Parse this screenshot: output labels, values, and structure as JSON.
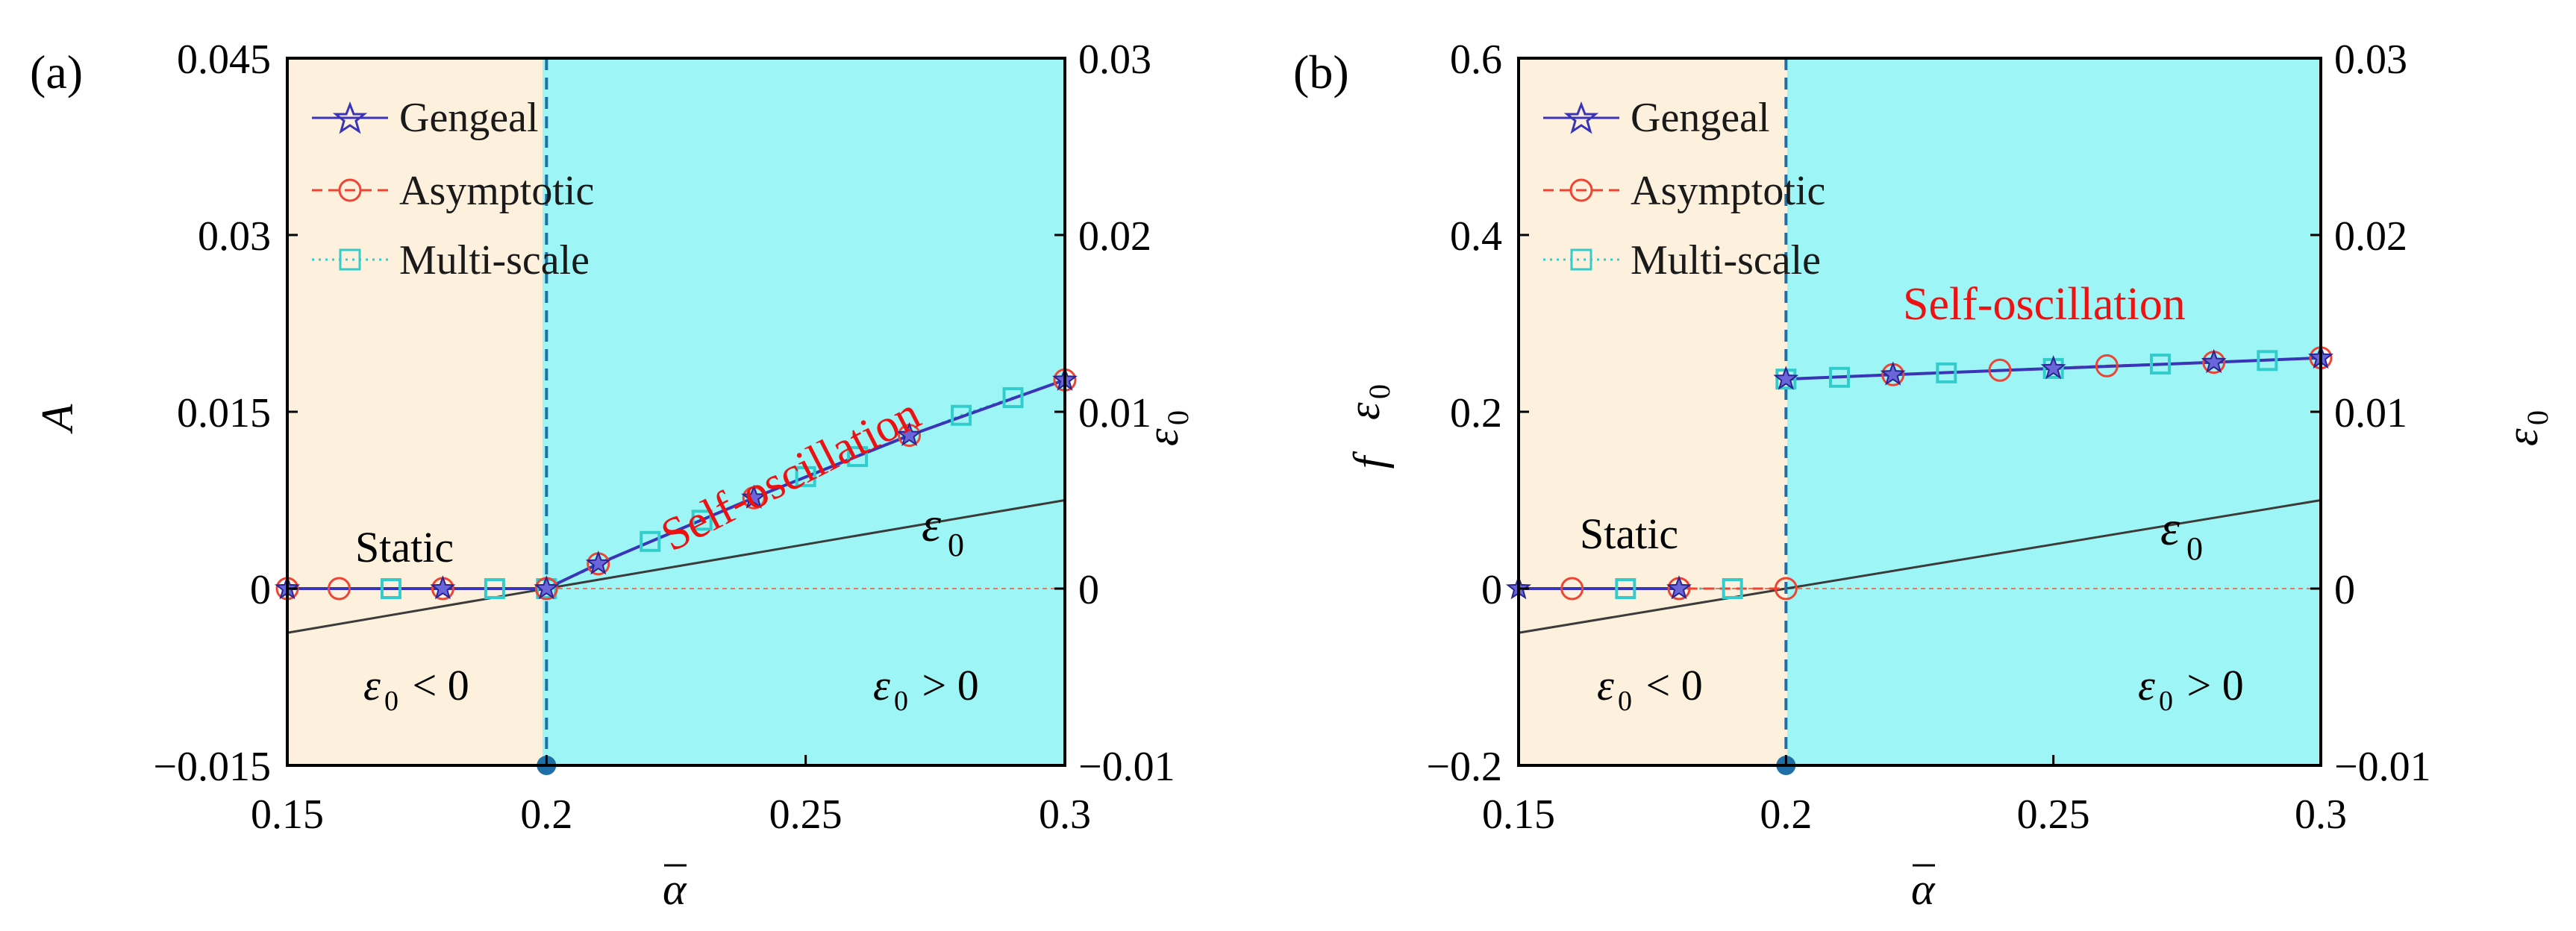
{
  "chart_data": [
    {
      "type": "line",
      "panel_label": "(a)",
      "xlabel": "α",
      "ylabel": "A",
      "ylabel_right": "ε",
      "ylabel_right_sub": "0",
      "xlim": [
        0.15,
        0.3
      ],
      "ylim": [
        -0.015,
        0.045
      ],
      "ylim_right": [
        -0.01,
        0.03
      ],
      "xticks": [
        "0.15",
        "0.2",
        "0.25",
        "0.3"
      ],
      "yticks": [
        "−0.015",
        "0",
        "0.015",
        "0.03",
        "0.045"
      ],
      "yticks_right": [
        "−0.01",
        "0",
        "0.01",
        "0.02",
        "0.03"
      ],
      "regions": [
        {
          "name": "static-region",
          "x": [
            0.15,
            0.2
          ],
          "color": "#fdf0dc"
        },
        {
          "name": "oscillation-region",
          "x": [
            0.2,
            0.3
          ],
          "color": "#9ef5f5"
        }
      ],
      "critical_value": 0.2,
      "series": [
        {
          "name": "Gengeal",
          "marker": "star",
          "color": "#3a34b8",
          "x": [
            0.15,
            0.18,
            0.2,
            0.21,
            0.24,
            0.27,
            0.3
          ],
          "y": [
            0,
            0,
            0,
            0.0021,
            0.0077,
            0.013,
            0.0177
          ]
        },
        {
          "name": "Asymptotic",
          "marker": "circle",
          "color": "#ee4433",
          "x": [
            0.15,
            0.16,
            0.18,
            0.2,
            0.21,
            0.24,
            0.27,
            0.3
          ],
          "y": [
            0,
            0,
            0,
            0,
            0.0021,
            0.0077,
            0.013,
            0.0177
          ]
        },
        {
          "name": "Multi-scale",
          "marker": "square",
          "color": "#33cccc",
          "x": [
            0.17,
            0.19,
            0.2,
            0.22,
            0.23,
            0.25,
            0.26,
            0.28,
            0.29
          ],
          "y": [
            0,
            0,
            0,
            0.004,
            0.0058,
            0.0095,
            0.0112,
            0.0147,
            0.0162
          ]
        }
      ],
      "epsilon_line": {
        "name": "ε0",
        "x": [
          0.15,
          0.3
        ],
        "y": [
          -0.0025,
          0.005
        ]
      },
      "annotations": {
        "self_oscillation": "Self-oscillation",
        "static": "Static",
        "eps_label": "ε",
        "eps_sub": "0",
        "eps_lt_label": "ε",
        "eps_lt_sub": "0",
        "eps_lt_rel": " < 0",
        "eps_gt_label": "ε",
        "eps_gt_sub": "0",
        "eps_gt_rel": " > 0"
      },
      "legend": [
        "Gengeal",
        "Asymptotic",
        "Multi-scale"
      ]
    },
    {
      "type": "line",
      "panel_label": "(b)",
      "xlabel": "α",
      "ylabel": "f",
      "ylabel_right": "ε",
      "ylabel_right_sub": "0",
      "ylabel_left2": "ε",
      "ylabel_left2_sub": "0",
      "xlim": [
        0.15,
        0.3
      ],
      "ylim": [
        -0.2,
        0.6
      ],
      "ylim_right": [
        -0.01,
        0.03
      ],
      "xticks": [
        "0.15",
        "0.2",
        "0.25",
        "0.3"
      ],
      "yticks": [
        "−0.2",
        "0",
        "0.2",
        "0.4",
        "0.6"
      ],
      "yticks_right": [
        "−0.01",
        "0",
        "0.01",
        "0.02",
        "0.03"
      ],
      "regions": [
        {
          "name": "static-region",
          "x": [
            0.15,
            0.2
          ],
          "color": "#fdf0dc"
        },
        {
          "name": "oscillation-region",
          "x": [
            0.2,
            0.3
          ],
          "color": "#9ef5f5"
        }
      ],
      "critical_value": 0.2,
      "series": [
        {
          "name": "Gengeal",
          "marker": "star",
          "color": "#3a34b8",
          "x": [
            0.15,
            0.18,
            0.2,
            0.22,
            0.25,
            0.28,
            0.3
          ],
          "y": [
            0,
            0,
            0.237,
            0.242,
            0.249,
            0.256,
            0.261
          ]
        },
        {
          "name": "Asymptotic",
          "marker": "circle",
          "color": "#ee4433",
          "x": [
            0.16,
            0.18,
            0.2,
            0.22,
            0.24,
            0.26,
            0.28,
            0.3
          ],
          "y": [
            0,
            0,
            0,
            0.242,
            0.247,
            0.252,
            0.256,
            0.261
          ]
        },
        {
          "name": "Multi-scale",
          "marker": "square",
          "color": "#33cccc",
          "x": [
            0.17,
            0.19,
            0.2,
            0.21,
            0.23,
            0.25,
            0.27,
            0.29
          ],
          "y": [
            0,
            0,
            0.237,
            0.239,
            0.244,
            0.249,
            0.254,
            0.258
          ]
        }
      ],
      "epsilon_line": {
        "name": "ε0",
        "x": [
          0.15,
          0.3
        ],
        "y": [
          -0.0025,
          0.005
        ]
      },
      "annotations": {
        "self_oscillation": "Self-oscillation",
        "static": "Static",
        "eps_label": "ε",
        "eps_sub": "0",
        "eps_lt_label": "ε",
        "eps_lt_sub": "0",
        "eps_lt_rel": " < 0",
        "eps_gt_label": "ε",
        "eps_gt_sub": "0",
        "eps_gt_rel": " > 0"
      },
      "legend": [
        "Gengeal",
        "Asymptotic",
        "Multi-scale"
      ]
    }
  ]
}
